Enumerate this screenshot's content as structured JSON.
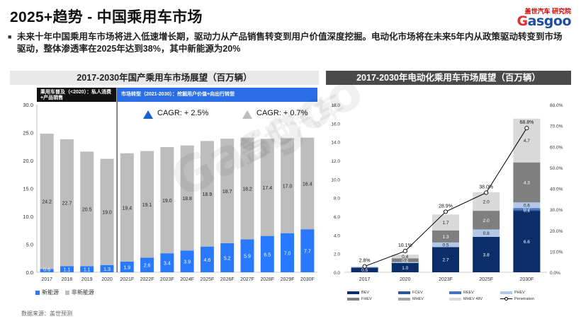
{
  "header": {
    "title": "2025+趋势 - 中国乘用车市场",
    "logo_top": "盖世汽车 研究院",
    "logo_word_a": "G",
    "logo_word_b": "asgoo"
  },
  "bullet": "未来十年中国乘用车市场将进入低速增长期，驱动力从产品销售转变到用户价值深度挖掘。电动化市场将在未来5年内从政策驱动转变到市场驱动，整体渗透率在2025年达到38%，其中新能源为20%",
  "left_panel": {
    "heading": "2017-2030年国产乘用车市场展望（百万辆）",
    "stage_a": "乘用车普及（<2020）：私人消费+产品销售",
    "stage_b": "市场转型（2021-2030）：挖掘用户价值+向出行转型",
    "cagr_blue": "CAGR: + 2.5%",
    "cagr_grey": "CAGR: + 0.7%",
    "legend_nev": "新能源",
    "legend_non": "非新能源"
  },
  "right_panel": {
    "heading": "2017-2030年电动化乘用车市场展望（百万辆）",
    "legend": [
      "BEV",
      "FCEV",
      "REEV",
      "PHEV",
      "FHEV",
      "MHEV",
      "MHEV 48V",
      "Penetration"
    ]
  },
  "source": "数据来源：盖世预测",
  "watermark": "Gasgoo",
  "watermark_cn": "盖世汽车",
  "colors": {
    "nev": "#2979ff",
    "non_nev": "#bdbdbd",
    "bev": "#0b2e6b",
    "fcev": "#2f5597",
    "reev": "#4472c4",
    "phev": "#b4c7e7",
    "fhev": "#7f7f7f",
    "mhev": "#a5a5a5",
    "mhev48": "#d9d9d9",
    "line": "#000000"
  },
  "chart_data": [
    {
      "type": "bar",
      "stacked": true,
      "categories": [
        "2017",
        "2018",
        "2019",
        "2020",
        "2021F",
        "2022F",
        "2023F",
        "2024F",
        "2025F",
        "2026F",
        "2027F",
        "2028F",
        "2029F",
        "2030F"
      ],
      "series": [
        {
          "name": "新能源",
          "values": [
            0.6,
            1.1,
            1.1,
            1.3,
            1.9,
            2.6,
            3.4,
            3.9,
            4.6,
            5.2,
            5.9,
            6.5,
            7.0,
            7.7
          ]
        },
        {
          "name": "非新能源",
          "values": [
            24.2,
            22.7,
            20.5,
            19.0,
            19.4,
            19.1,
            19.0,
            18.8,
            18.9,
            18.7,
            18.2,
            17.4,
            17.0,
            16.4
          ]
        }
      ],
      "ylim": [
        0,
        30
      ],
      "yticks": [
        "0.0",
        "5.0",
        "10.0",
        "15.0",
        "20.0",
        "25.0",
        "30.0"
      ],
      "annotations": [
        "CAGR: + 2.5%",
        "CAGR: + 0.7%"
      ]
    },
    {
      "type": "bar",
      "stacked": true,
      "categories": [
        "2017",
        "2020",
        "2023F",
        "2025F",
        "2030F"
      ],
      "series": [
        {
          "name": "BEV",
          "values": [
            0.5,
            1.0,
            2.7,
            3.8,
            6.6
          ]
        },
        {
          "name": "FCEV",
          "values": [
            0,
            0,
            0,
            0,
            0.1
          ]
        },
        {
          "name": "REEV",
          "values": [
            0,
            0,
            0,
            0,
            0.2
          ]
        },
        {
          "name": "PHEV",
          "values": [
            0.1,
            0.1,
            0.5,
            0.8,
            0.6
          ]
        },
        {
          "name": "FHEV",
          "values": [
            0,
            0.4,
            1.3,
            2.0,
            4.3
          ]
        },
        {
          "name": "MHEV",
          "values": [
            0,
            0,
            0,
            0,
            0
          ]
        },
        {
          "name": "MHEV 48V",
          "values": [
            0,
            0.4,
            1.7,
            2.0,
            4.7
          ]
        }
      ],
      "series_labels": {
        "BEV": [
          "0.5",
          "1.0",
          "2.7",
          "3.8",
          "6.6"
        ],
        "FCEV": [
          null,
          null,
          null,
          null,
          "0.1"
        ],
        "REEV": [
          null,
          null,
          null,
          null,
          "0.2"
        ],
        "PHEV": [
          null,
          null,
          "0.5",
          "0.8",
          "0.6"
        ],
        "FHEV": [
          null,
          "0.4",
          "1.3",
          "2.0",
          "4.3"
        ],
        "MHEV 48V": [
          null,
          "0.4",
          "1.7",
          "2.0",
          "4.7"
        ]
      },
      "line": {
        "name": "Penetration",
        "values": [
          2.8,
          10.1,
          28.9,
          38.0,
          68.8
        ],
        "labels": [
          "2.8%",
          "10.1%",
          "28.9%",
          "38.0%",
          "68.8%"
        ]
      },
      "ylim": [
        0,
        18
      ],
      "yticks": [
        "0.0",
        "2.0",
        "4.0",
        "6.0",
        "8.0",
        "10.0",
        "12.0",
        "14.0",
        "16.0",
        "18.0"
      ],
      "y2lim": [
        0,
        80
      ],
      "y2ticks": [
        "0.0%",
        "10.0%",
        "20.0%",
        "30.0%",
        "40.0%",
        "50.0%",
        "60.0%",
        "70.0%",
        "80.0%"
      ]
    }
  ]
}
